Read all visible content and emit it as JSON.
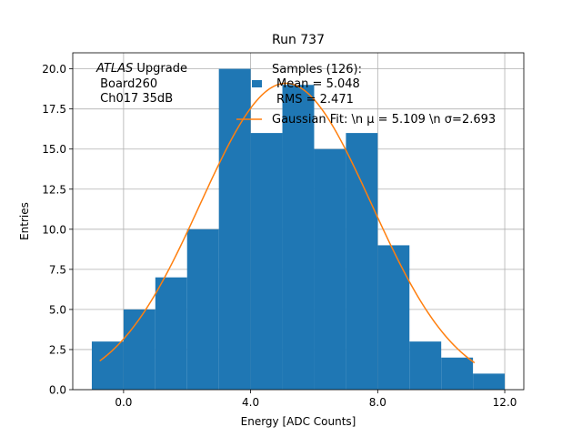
{
  "chart_data": {
    "type": "bar",
    "title": "Run 737",
    "xlabel": "Energy [ADC Counts]",
    "ylabel": "Entries",
    "xlim": [
      -1.6,
      12.6
    ],
    "ylim": [
      0,
      21
    ],
    "grid": true,
    "x_ticks": [
      0,
      4,
      8,
      12
    ],
    "x_tick_labels": [
      "0.0",
      "4.0",
      "8.0",
      "12.0"
    ],
    "y_ticks": [
      0,
      2.5,
      5,
      7.5,
      10,
      12.5,
      15,
      17.5,
      20
    ],
    "y_tick_labels": [
      "0.0",
      "2.5",
      "5.0",
      "7.5",
      "10.0",
      "12.5",
      "15.0",
      "17.5",
      "20.0"
    ],
    "histogram": {
      "bin_edges": [
        -1,
        0,
        1,
        2,
        3,
        4,
        5,
        6,
        7,
        8,
        9,
        10,
        11,
        12
      ],
      "counts": [
        3,
        5,
        7,
        10,
        20,
        16,
        19,
        15,
        16,
        9,
        3,
        2,
        1
      ],
      "color": "#1f77b4"
    },
    "gaussian_fit": {
      "amplitude": 19.1,
      "mu": 5.109,
      "sigma": 2.693,
      "x_range": [
        -0.75,
        11.05
      ],
      "color": "#ff7f0e"
    },
    "annotation": {
      "italic": "ATLAS",
      "line1_rest": " Upgrade",
      "line2": " Board260",
      "line3": " Ch017 35dB"
    },
    "legend": {
      "position": "top-right",
      "samples_line1": "Samples (126):",
      "samples_line2": "Mean = 5.048",
      "samples_line3": "RMS = 2.471",
      "fit_label": "Gaussian Fit: \\n μ = 5.109 \\n σ=2.693"
    }
  }
}
